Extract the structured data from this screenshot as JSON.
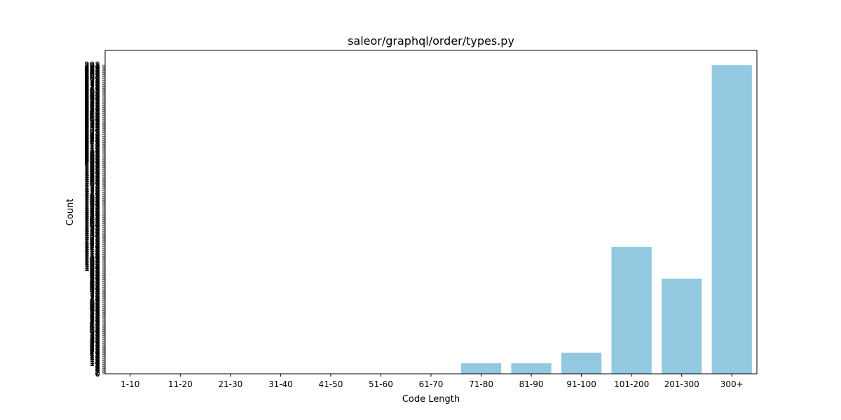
{
  "chart_data": {
    "type": "bar",
    "title": "saleor/graphql/order/types.py",
    "xlabel": "Code Length",
    "ylabel": "Count",
    "categories": [
      "1-10",
      "11-20",
      "21-30",
      "31-40",
      "41-50",
      "51-60",
      "61-70",
      "71-80",
      "81-90",
      "91-100",
      "101-200",
      "201-300",
      "300+"
    ],
    "values": [
      0,
      0,
      0,
      0,
      0,
      0,
      0,
      10,
      10,
      20,
      120,
      90,
      292
    ],
    "ylim": [
      0,
      306
    ],
    "bar_color": "#92c9e0",
    "grid": false,
    "legend": "none"
  }
}
